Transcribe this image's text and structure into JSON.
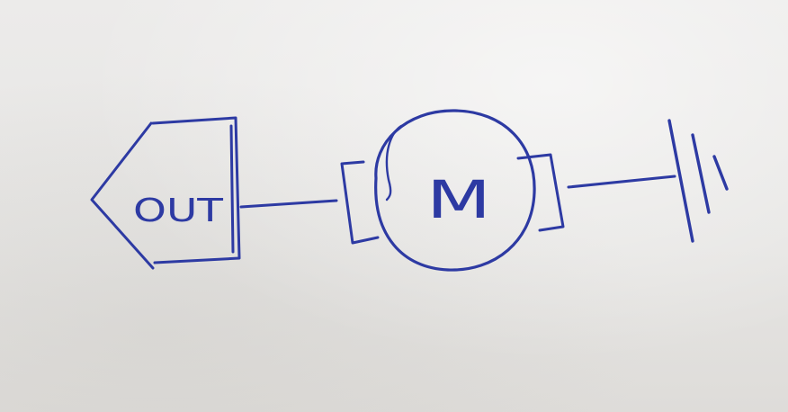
{
  "diagram": {
    "output_label": "OUT",
    "motor_label": "M"
  },
  "colors": {
    "ink": "#2d3aa3",
    "paper": "#e9e8e6"
  }
}
